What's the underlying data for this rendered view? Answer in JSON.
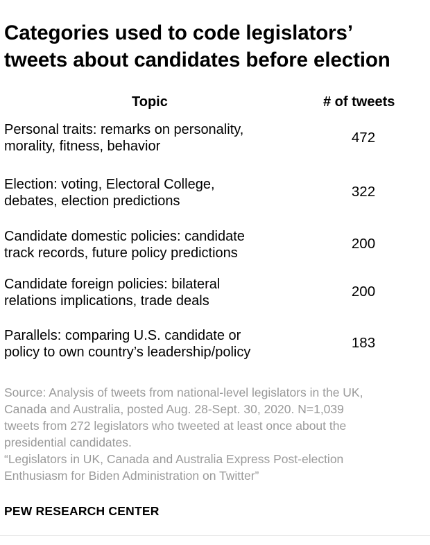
{
  "chart_data": {
    "type": "table",
    "title_lines": [
      "Categories used to code legislators’",
      "tweets about candidates before election"
    ],
    "columns": [
      "Topic",
      "# of tweets"
    ],
    "rows": [
      {
        "topic_lines": [
          "Personal traits: remarks on personality,",
          "morality, fitness, behavior"
        ],
        "count": "472"
      },
      {
        "topic_lines": [
          "Election: voting, Electoral College,",
          "debates, election predictions"
        ],
        "count": "322"
      },
      {
        "topic_lines": [
          "Candidate domestic policies: candidate",
          "track records, future policy predictions"
        ],
        "count": "200"
      },
      {
        "topic_lines": [
          "Candidate foreign policies: bilateral",
          "relations implications, trade deals"
        ],
        "count": "200"
      },
      {
        "topic_lines": [
          "Parallels: comparing U.S. candidate or",
          "policy to own country’s leadership/policy"
        ],
        "count": "183"
      }
    ],
    "source_lines": [
      "Source: Analysis of tweets from national-level legislators in the UK,",
      "Canada and Australia, posted Aug. 28-Sept. 30, 2020. N=1,039",
      "tweets from 272 legislators who tweeted at least once about the",
      "presidential candidates.",
      "“Legislators in UK, Canada and Australia Express Post-election",
      "Enthusiasm for Biden Administration on Twitter”"
    ],
    "brand": "PEW RESEARCH CENTER"
  },
  "colors": {
    "text": "#000000",
    "source_text": "#9a9a9a",
    "background": "#ffffff"
  }
}
